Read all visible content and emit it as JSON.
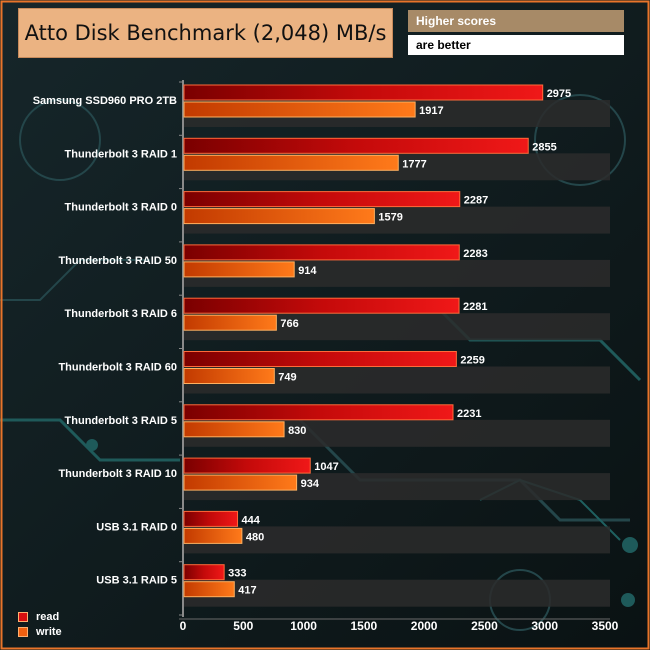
{
  "header": {
    "title": "Atto Disk Benchmark (2,048) MB/s",
    "note_line1": "Higher scores",
    "note_line2": "are better"
  },
  "legend": {
    "read": "read",
    "write": "write"
  },
  "colors": {
    "read": "#e01010",
    "write": "#f36a10",
    "frame": "#e8742a"
  },
  "chart_data": {
    "type": "bar",
    "orientation": "horizontal",
    "title": "Atto Disk Benchmark (2,048) MB/s",
    "categories": [
      "Samsung SSD960 PRO 2TB",
      "Thunderbolt 3 RAID 1",
      "Thunderbolt 3 RAID 0",
      "Thunderbolt 3 RAID 50",
      "Thunderbolt 3 RAID 6",
      "Thunderbolt 3 RAID 60",
      "Thunderbolt 3 RAID 5",
      "Thunderbolt 3 RAID 10",
      "USB 3.1 RAID 0",
      "USB 3.1 RAID 5"
    ],
    "series": [
      {
        "name": "read",
        "values": [
          2975,
          2855,
          2287,
          2283,
          2281,
          2259,
          2231,
          1047,
          444,
          333
        ]
      },
      {
        "name": "write",
        "values": [
          1917,
          1777,
          1579,
          914,
          766,
          749,
          830,
          934,
          480,
          417
        ]
      }
    ],
    "xlim": [
      0,
      3500
    ],
    "xticks": [
      0,
      500,
      1000,
      1500,
      2000,
      2500,
      3000,
      3500
    ],
    "xlabel": "",
    "ylabel": "",
    "legend_position": "bottom-left"
  }
}
